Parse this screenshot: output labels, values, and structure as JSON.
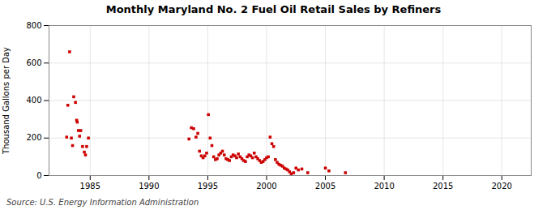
{
  "chart_data": {
    "type": "scatter",
    "title": "Monthly Maryland No. 2 Fuel Oil Retail Sales by Refiners",
    "ylabel": "Thousand Gallons per Day",
    "source": "Source: U.S. Energy Information Administration",
    "color": "#cc0000",
    "marker": "square",
    "grid": true,
    "xlim": [
      1981.5,
      2022.5
    ],
    "ylim": [
      0,
      800
    ],
    "xticks": [
      1985,
      1990,
      1995,
      2000,
      2005,
      2010,
      2015,
      2020
    ],
    "yticks": [
      0,
      200,
      400,
      600,
      800
    ],
    "x": [
      1983.0,
      1983.1,
      1983.25,
      1983.4,
      1983.5,
      1983.6,
      1983.75,
      1983.85,
      1983.9,
      1984.0,
      1984.1,
      1984.2,
      1984.35,
      1984.5,
      1984.6,
      1984.7,
      1984.85,
      1993.4,
      1993.6,
      1993.8,
      1994.0,
      1994.15,
      1994.3,
      1994.45,
      1994.6,
      1994.75,
      1994.9,
      1995.05,
      1995.2,
      1995.35,
      1995.5,
      1995.65,
      1995.8,
      1995.95,
      1996.1,
      1996.25,
      1996.4,
      1996.55,
      1996.7,
      1996.85,
      1997.0,
      1997.15,
      1997.3,
      1997.45,
      1997.6,
      1997.75,
      1997.9,
      1998.05,
      1998.2,
      1998.35,
      1998.5,
      1998.65,
      1998.8,
      1998.95,
      1999.1,
      1999.25,
      1999.4,
      1999.55,
      1999.7,
      1999.85,
      2000.0,
      2000.15,
      2000.3,
      2000.45,
      2000.6,
      2000.75,
      2000.9,
      2001.05,
      2001.2,
      2001.35,
      2001.5,
      2001.65,
      2001.8,
      2001.95,
      2002.1,
      2002.3,
      2002.5,
      2002.7,
      2003.0,
      2003.5,
      2005.0,
      2005.3,
      2006.7
    ],
    "values": [
      205,
      375,
      660,
      200,
      160,
      420,
      390,
      295,
      285,
      240,
      210,
      240,
      155,
      125,
      110,
      155,
      200,
      195,
      255,
      250,
      205,
      225,
      130,
      105,
      95,
      105,
      120,
      325,
      200,
      160,
      100,
      85,
      90,
      110,
      120,
      130,
      110,
      90,
      85,
      80,
      100,
      110,
      105,
      95,
      115,
      100,
      90,
      80,
      75,
      100,
      110,
      105,
      95,
      120,
      100,
      90,
      80,
      70,
      75,
      85,
      95,
      100,
      205,
      170,
      155,
      85,
      70,
      60,
      55,
      50,
      40,
      35,
      30,
      20,
      10,
      15,
      40,
      30,
      35,
      15,
      40,
      25,
      15
    ]
  }
}
